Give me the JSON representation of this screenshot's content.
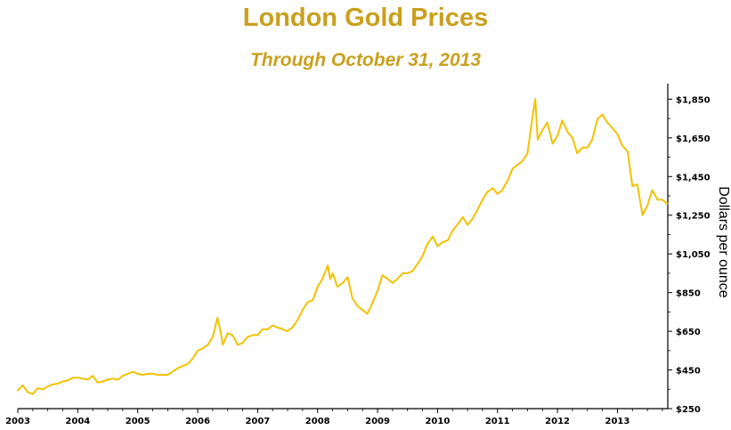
{
  "chart_data": {
    "type": "line",
    "title": "London Gold Prices",
    "subtitle": "Through October 31, 2013",
    "xlabel": "",
    "ylabel": "Dollars per ounce",
    "x_tick_labels": [
      "2003",
      "2004",
      "2005",
      "2006",
      "2007",
      "2008",
      "2009",
      "2010",
      "2011",
      "2012",
      "2013"
    ],
    "y_tick_labels": [
      "$1,850",
      "$1,650",
      "$1,450",
      "$1,250",
      "$1,050",
      "$850",
      "$650",
      "$450",
      "$250"
    ],
    "y_ticks": [
      1850,
      1650,
      1450,
      1250,
      1050,
      850,
      650,
      450,
      250
    ],
    "ylim": [
      250,
      1930
    ],
    "xlim": [
      2003.0,
      2013.84
    ],
    "y_axis_position": "right",
    "grid": false,
    "line_color": "#F2C200",
    "series": [
      {
        "x": [
          2003.0,
          2003.08,
          2003.17,
          2003.25,
          2003.33,
          2003.42,
          2003.5,
          2003.58,
          2003.67,
          2003.75,
          2003.83,
          2003.92,
          2004.0,
          2004.08,
          2004.17,
          2004.25,
          2004.33,
          2004.42,
          2004.5,
          2004.58,
          2004.67,
          2004.75,
          2004.83,
          2004.92,
          2005.0,
          2005.08,
          2005.17,
          2005.25,
          2005.33,
          2005.42,
          2005.5,
          2005.58,
          2005.67,
          2005.75,
          2005.83,
          2005.92,
          2006.0,
          2006.08,
          2006.17,
          2006.25,
          2006.33,
          2006.38,
          2006.42,
          2006.5,
          2006.58,
          2006.67,
          2006.75,
          2006.83,
          2006.92,
          2007.0,
          2007.08,
          2007.17,
          2007.25,
          2007.33,
          2007.42,
          2007.5,
          2007.58,
          2007.67,
          2007.75,
          2007.83,
          2007.92,
          2008.0,
          2008.08,
          2008.17,
          2008.21,
          2008.25,
          2008.33,
          2008.42,
          2008.5,
          2008.58,
          2008.67,
          2008.75,
          2008.83,
          2008.92,
          2009.0,
          2009.08,
          2009.17,
          2009.25,
          2009.33,
          2009.42,
          2009.5,
          2009.58,
          2009.67,
          2009.75,
          2009.83,
          2009.92,
          2010.0,
          2010.08,
          2010.17,
          2010.25,
          2010.33,
          2010.42,
          2010.5,
          2010.58,
          2010.67,
          2010.75,
          2010.83,
          2010.92,
          2011.0,
          2011.08,
          2011.17,
          2011.25,
          2011.33,
          2011.42,
          2011.5,
          2011.58,
          2011.63,
          2011.67,
          2011.75,
          2011.83,
          2011.92,
          2012.0,
          2012.08,
          2012.17,
          2012.25,
          2012.33,
          2012.42,
          2012.5,
          2012.58,
          2012.67,
          2012.75,
          2012.83,
          2012.92,
          2013.0,
          2013.08,
          2013.17,
          2013.25,
          2013.33,
          2013.42,
          2013.5,
          2013.58,
          2013.67,
          2013.75,
          2013.83
        ],
        "values": [
          345,
          370,
          335,
          325,
          355,
          350,
          365,
          375,
          380,
          390,
          395,
          410,
          410,
          405,
          400,
          420,
          385,
          390,
          400,
          405,
          400,
          420,
          430,
          440,
          430,
          425,
          430,
          430,
          425,
          425,
          425,
          440,
          460,
          470,
          480,
          510,
          550,
          560,
          580,
          620,
          720,
          650,
          580,
          640,
          630,
          580,
          590,
          620,
          630,
          630,
          660,
          660,
          680,
          670,
          660,
          650,
          670,
          710,
          760,
          800,
          810,
          880,
          920,
          990,
          920,
          950,
          880,
          900,
          930,
          820,
          780,
          760,
          740,
          800,
          860,
          940,
          920,
          900,
          920,
          950,
          950,
          960,
          1000,
          1040,
          1100,
          1140,
          1090,
          1110,
          1120,
          1170,
          1200,
          1240,
          1200,
          1230,
          1280,
          1330,
          1370,
          1390,
          1360,
          1380,
          1430,
          1490,
          1510,
          1530,
          1570,
          1750,
          1850,
          1640,
          1690,
          1730,
          1620,
          1660,
          1740,
          1680,
          1650,
          1570,
          1600,
          1600,
          1640,
          1750,
          1770,
          1730,
          1700,
          1670,
          1610,
          1580,
          1400,
          1410,
          1250,
          1300,
          1380,
          1330,
          1330,
          1310
        ]
      }
    ]
  }
}
